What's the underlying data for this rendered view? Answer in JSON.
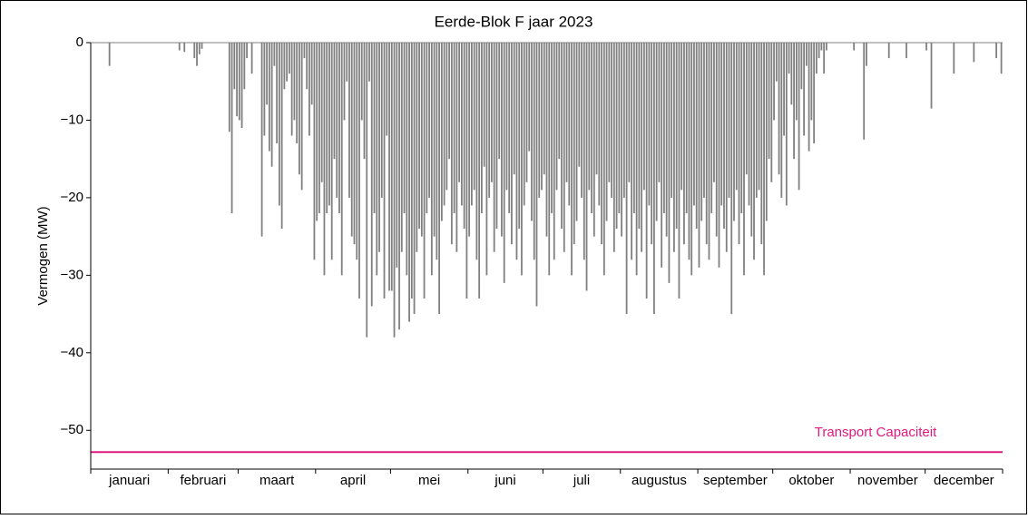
{
  "chart_data": {
    "type": "bar",
    "title": "Eerde-Blok F jaar 2023",
    "y_label": "Vermogen (MW)",
    "color": "#808080",
    "categories": [
      "januari",
      "februari",
      "maart",
      "april",
      "mei",
      "juni",
      "juli",
      "augustus",
      "september",
      "oktober",
      "november",
      "december"
    ],
    "xlim": [
      0,
      365
    ],
    "xticks": [
      0,
      31,
      59,
      90,
      120,
      151,
      181,
      212,
      243,
      273,
      304,
      334,
      365
    ],
    "ylim": [
      -55,
      0
    ],
    "yticks": [
      {
        "value": -50,
        "label": "−50"
      },
      {
        "value": -40,
        "label": "−40"
      },
      {
        "value": -30,
        "label": "−30"
      },
      {
        "value": -20,
        "label": "−20"
      },
      {
        "value": -10,
        "label": "−10"
      },
      0
    ],
    "x": [
      8,
      36,
      38,
      42,
      43,
      44,
      45,
      56,
      57,
      58,
      59,
      60,
      61,
      62,
      63,
      65,
      69,
      70,
      71,
      72,
      73,
      74,
      75,
      76,
      77,
      78,
      79,
      80,
      81,
      82,
      83,
      84,
      85,
      86,
      87,
      88,
      89,
      90,
      91,
      92,
      93,
      94,
      95,
      96,
      97,
      98,
      99,
      100,
      101,
      102,
      103,
      104,
      105,
      106,
      107,
      108,
      109,
      110,
      111,
      112,
      113,
      114,
      115,
      116,
      117,
      118,
      119,
      120,
      121,
      122,
      123,
      124,
      125,
      126,
      127,
      128,
      129,
      130,
      131,
      132,
      133,
      134,
      135,
      136,
      137,
      138,
      139,
      140,
      141,
      142,
      143,
      144,
      145,
      146,
      147,
      148,
      149,
      150,
      151,
      152,
      153,
      154,
      155,
      156,
      157,
      158,
      159,
      160,
      161,
      162,
      163,
      164,
      165,
      166,
      167,
      168,
      169,
      170,
      171,
      172,
      173,
      174,
      175,
      176,
      177,
      178,
      179,
      180,
      181,
      182,
      183,
      184,
      185,
      186,
      187,
      188,
      189,
      190,
      191,
      192,
      193,
      194,
      195,
      196,
      197,
      198,
      199,
      200,
      201,
      202,
      203,
      204,
      205,
      206,
      207,
      208,
      209,
      210,
      211,
      212,
      213,
      214,
      215,
      216,
      217,
      218,
      219,
      220,
      221,
      222,
      223,
      224,
      225,
      226,
      227,
      228,
      229,
      230,
      231,
      232,
      233,
      234,
      235,
      236,
      237,
      238,
      239,
      240,
      241,
      242,
      243,
      244,
      245,
      246,
      247,
      248,
      249,
      250,
      251,
      252,
      253,
      254,
      255,
      256,
      257,
      258,
      259,
      260,
      261,
      262,
      263,
      264,
      265,
      266,
      267,
      268,
      269,
      270,
      271,
      272,
      273,
      274,
      275,
      276,
      277,
      278,
      279,
      280,
      281,
      282,
      283,
      284,
      285,
      286,
      287,
      288,
      289,
      290,
      291,
      292,
      293,
      294,
      295,
      306,
      310,
      311,
      320,
      327,
      335,
      337,
      346,
      354,
      363,
      365
    ],
    "values": [
      -3,
      -1,
      -1.2,
      -2,
      -3,
      -1.5,
      -0.8,
      -11.5,
      -22,
      -6,
      -9.5,
      -10,
      -11,
      -6,
      -2,
      -4,
      -25,
      -12,
      -8,
      -14,
      -16,
      -3,
      -13,
      -21,
      -24,
      -6,
      -5,
      -4,
      -12,
      -10,
      -13,
      -17,
      -19,
      -2,
      -6,
      -12,
      -8,
      -28,
      -23,
      -22,
      -18,
      -30,
      -22,
      -21,
      -28,
      -15,
      -20,
      -22,
      -30,
      -10,
      -5,
      -20,
      -25,
      -26,
      -28,
      -33,
      -10,
      -15,
      -38,
      -5,
      -34,
      -22,
      -30,
      -27,
      -20,
      -33,
      -12,
      -32,
      -32,
      -38,
      -29,
      -37,
      -27,
      -22,
      -30,
      -36,
      -33,
      -35,
      -27,
      -24,
      -25,
      -33,
      -22,
      -20,
      -30,
      -25,
      -28,
      -35,
      -23,
      -21,
      -19,
      -15,
      -26,
      -22,
      -27,
      -18,
      -21,
      -24,
      -33,
      -25,
      -21,
      -19,
      -28,
      -33,
      -22,
      -16,
      -30,
      -20,
      -18,
      -27,
      -24,
      -15,
      -25,
      -31,
      -19,
      -22,
      -26,
      -17,
      -28,
      -24,
      -30,
      -21,
      -18,
      -14,
      -23,
      -28,
      -34,
      -20,
      -19,
      -17,
      -25,
      -30,
      -22,
      -28,
      -19,
      -15,
      -24,
      -27,
      -18,
      -21,
      -30,
      -26,
      -23,
      -16,
      -20,
      -28,
      -32,
      -19,
      -22,
      -25,
      -17,
      -21,
      -26,
      -30,
      -23,
      -18,
      -20,
      -27,
      -24,
      -22,
      -25,
      -20,
      -35,
      -18,
      -28,
      -22,
      -30,
      -24,
      -27,
      -19,
      -33,
      -21,
      -26,
      -35,
      -23,
      -18,
      -29,
      -22,
      -25,
      -31,
      -20,
      -27,
      -24,
      -33,
      -19,
      -26,
      -22,
      -28,
      -30,
      -21,
      -24,
      -29,
      -23,
      -20,
      -26,
      -28,
      -22,
      -18,
      -25,
      -29,
      -21,
      -24,
      -27,
      -20,
      -35,
      -23,
      -19,
      -26,
      -22,
      -30,
      -17,
      -21,
      -25,
      -28,
      -20,
      -19,
      -26,
      -30,
      -23,
      -15,
      -18,
      -10,
      -5,
      -17,
      -20,
      -12,
      -21,
      -4,
      -8,
      -15,
      -10,
      -19,
      -6,
      -12,
      -3,
      -14,
      -10,
      -13,
      -4,
      -2,
      -1,
      -4,
      -1,
      -1,
      -12.5,
      -3,
      -2,
      -2,
      -1,
      -8.5,
      -4,
      -2.5,
      -2,
      -4
    ],
    "hline": {
      "label": "Transport Capaciteit",
      "value": -52.8,
      "color": "#e0197d"
    }
  }
}
